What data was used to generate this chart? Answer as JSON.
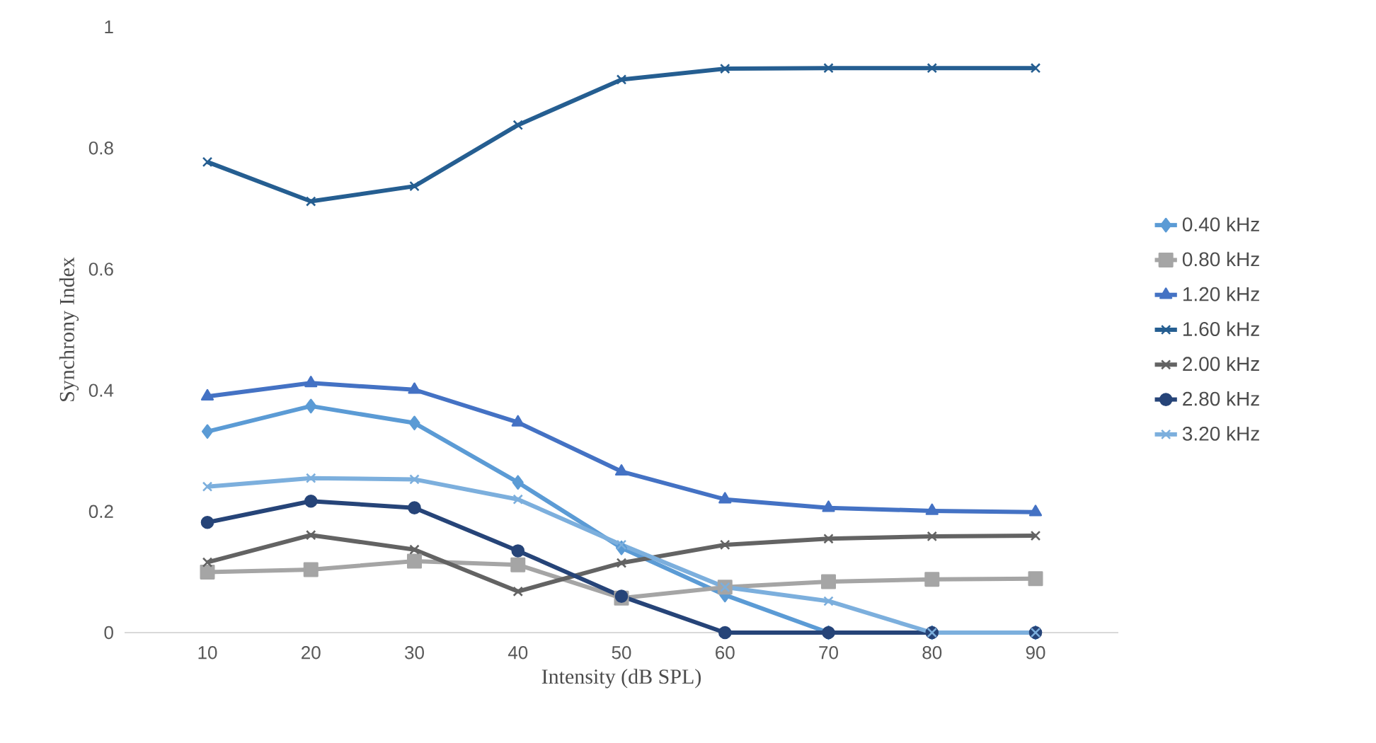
{
  "chart_data": {
    "type": "line",
    "xlabel": "Intensity (dB SPL)",
    "ylabel": "Synchrony Index",
    "x": [
      10,
      20,
      30,
      40,
      50,
      60,
      70,
      80,
      90
    ],
    "xlim": [
      2,
      98
    ],
    "xticks": [
      10,
      20,
      30,
      40,
      50,
      60,
      70,
      80,
      90
    ],
    "ylim": [
      0,
      1
    ],
    "yticks": [
      0,
      0.2,
      0.4,
      0.6,
      0.8,
      1
    ],
    "grid": false,
    "legend": "right",
    "series": [
      {
        "name": "0.40 kHz",
        "color": "#5b9bd5",
        "marker": "diamond",
        "values": [
          0.332,
          0.374,
          0.346,
          0.248,
          0.14,
          0.062,
          0,
          0,
          0
        ]
      },
      {
        "name": "0.80 kHz",
        "color": "#a5a5a5",
        "marker": "square",
        "values": [
          0.1,
          0.104,
          0.118,
          0.112,
          0.057,
          0.075,
          0.084,
          0.088,
          0.089
        ]
      },
      {
        "name": "1.20 kHz",
        "color": "#4472c4",
        "marker": "triangle",
        "values": [
          0.39,
          0.412,
          0.401,
          0.347,
          0.266,
          0.22,
          0.206,
          0.201,
          0.199
        ]
      },
      {
        "name": "1.60 kHz",
        "color": "#255e91",
        "marker": "cross",
        "values": [
          0.777,
          0.712,
          0.737,
          0.838,
          0.913,
          0.931,
          0.932,
          0.932,
          0.932
        ]
      },
      {
        "name": "2.00 kHz",
        "color": "#636363",
        "marker": "cross",
        "values": [
          0.116,
          0.161,
          0.137,
          0.068,
          0.115,
          0.145,
          0.155,
          0.159,
          0.16
        ]
      },
      {
        "name": "2.80 kHz",
        "color": "#264478",
        "marker": "circle",
        "values": [
          0.182,
          0.217,
          0.206,
          0.135,
          0.06,
          0,
          0,
          0,
          0
        ]
      },
      {
        "name": "3.20 kHz",
        "color": "#7cafdd",
        "marker": "cross",
        "values": [
          0.241,
          0.255,
          0.253,
          0.22,
          0.145,
          0.075,
          0.052,
          0,
          0
        ]
      }
    ]
  }
}
